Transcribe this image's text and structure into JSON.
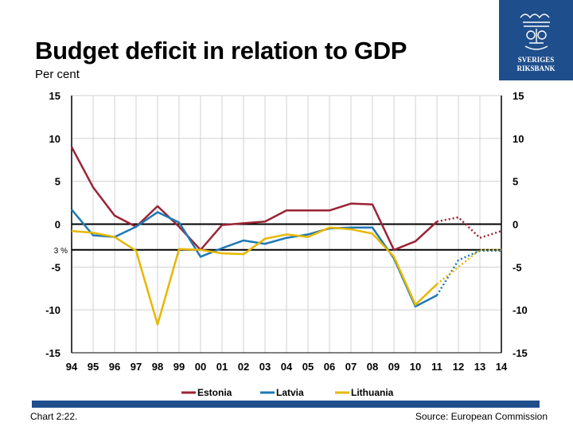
{
  "title": "Budget deficit in relation to GDP",
  "subtitle": "Per cent",
  "logo": {
    "text_line1": "SVERIGES",
    "text_line2": "RIKSBANK"
  },
  "footer": {
    "chart_number": "Chart 2:22.",
    "source": "Source: European Commission"
  },
  "chart_data": {
    "type": "line",
    "x": [
      "94",
      "95",
      "96",
      "97",
      "98",
      "99",
      "00",
      "01",
      "02",
      "03",
      "04",
      "05",
      "06",
      "07",
      "08",
      "09",
      "10",
      "11",
      "12",
      "13",
      "14"
    ],
    "ylim": [
      -15,
      15
    ],
    "yticks": [
      15,
      10,
      5,
      0,
      -5,
      -10,
      -15
    ],
    "reference_line": {
      "value": -3,
      "label": "3 %"
    },
    "grid": true,
    "legend_position": "bottom",
    "series": [
      {
        "name": "Estonia",
        "color": "#9b2335",
        "values": [
          9.0,
          4.3,
          1.0,
          -0.3,
          2.1,
          -0.3,
          -3.0,
          -0.1,
          0.1,
          0.3,
          1.6,
          1.6,
          1.6,
          2.4,
          2.3,
          -3.0,
          -2.0,
          0.3,
          0.8,
          -1.6,
          -0.8
        ],
        "forecast_from_index": 18
      },
      {
        "name": "Latvia",
        "color": "#1f78b4",
        "values": [
          1.7,
          -1.3,
          -1.5,
          -0.3,
          1.4,
          0.2,
          -3.8,
          -2.8,
          -1.9,
          -2.3,
          -1.6,
          -1.2,
          -0.5,
          -0.4,
          -0.4,
          -4.0,
          -9.6,
          -8.3,
          -4.2,
          -3.1,
          -3.1
        ],
        "forecast_from_index": 18
      },
      {
        "name": "Lithuania",
        "color": "#e6b800",
        "values": [
          -0.8,
          -1.0,
          -1.5,
          -3.1,
          -11.7,
          -2.9,
          -3.0,
          -3.4,
          -3.5,
          -1.7,
          -1.2,
          -1.5,
          -0.4,
          -0.6,
          -1.1,
          -3.8,
          -9.4,
          -7.0,
          -5.0,
          -3.0,
          -3.0
        ],
        "forecast_from_index": 18
      }
    ]
  }
}
